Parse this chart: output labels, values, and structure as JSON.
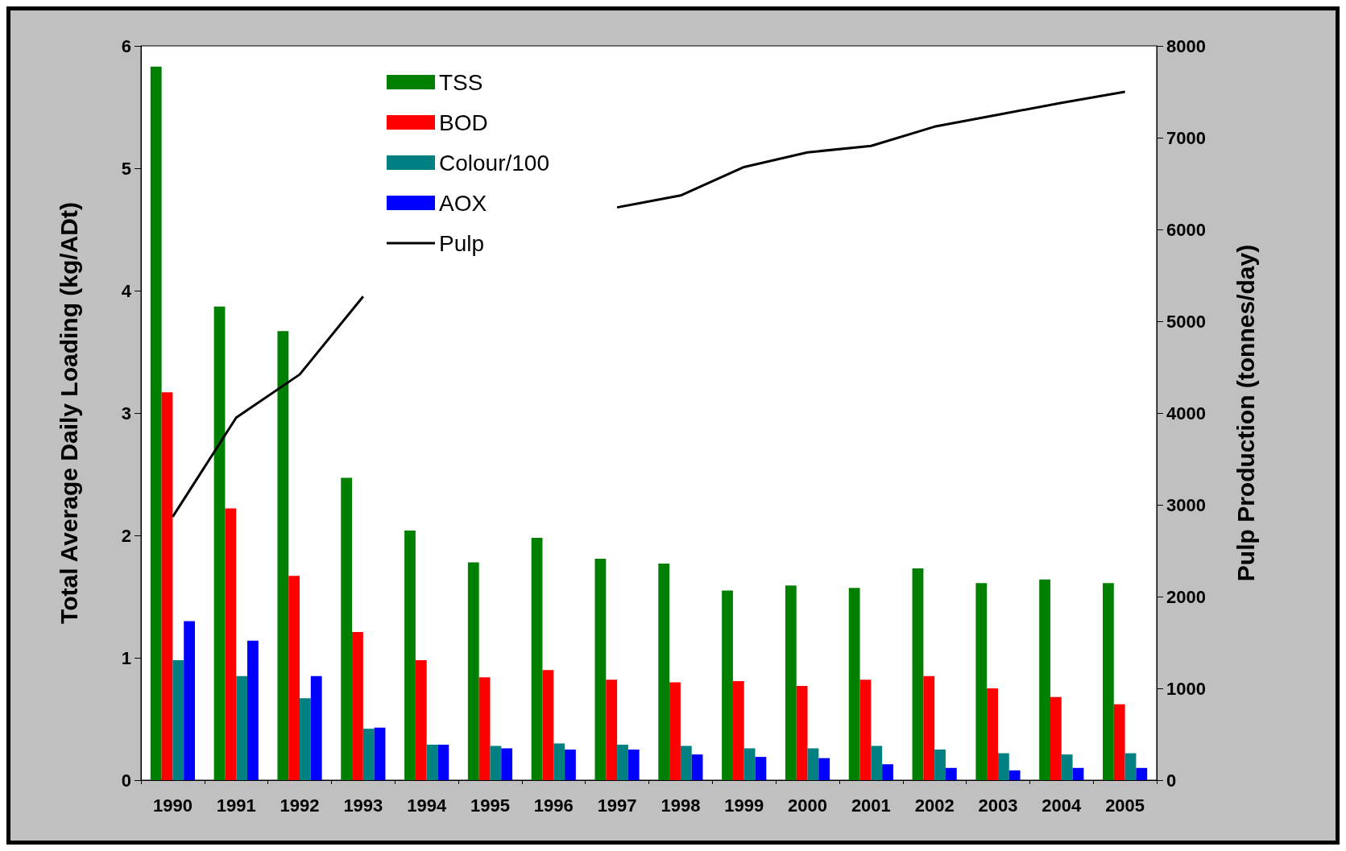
{
  "chart_data": {
    "type": "bar",
    "ylabel": "Total Average Daily Loading (kg/ADt)",
    "y2label": "Pulp Production (tonnes/day)",
    "categories": [
      "1990",
      "1991",
      "1992",
      "1993",
      "1994",
      "1995",
      "1996",
      "1997",
      "1998",
      "1999",
      "2000",
      "2001",
      "2002",
      "2003",
      "2004",
      "2005"
    ],
    "series": [
      {
        "name": "TSS",
        "color": "#008000",
        "values": [
          5.83,
          3.87,
          3.67,
          2.47,
          2.04,
          1.78,
          1.98,
          1.81,
          1.77,
          1.55,
          1.59,
          1.57,
          1.73,
          1.61,
          1.64,
          1.61
        ]
      },
      {
        "name": "BOD",
        "color": "#ff0000",
        "values": [
          3.17,
          2.22,
          1.67,
          1.21,
          0.98,
          0.84,
          0.9,
          0.82,
          0.8,
          0.81,
          0.77,
          0.82,
          0.85,
          0.75,
          0.68,
          0.62
        ]
      },
      {
        "name": "Colour/100",
        "color": "#008080",
        "values": [
          0.98,
          0.85,
          0.67,
          0.42,
          0.29,
          0.28,
          0.3,
          0.29,
          0.28,
          0.26,
          0.26,
          0.28,
          0.25,
          0.22,
          0.21,
          0.22
        ]
      },
      {
        "name": "AOX",
        "color": "#0000ff",
        "values": [
          1.3,
          1.14,
          0.85,
          0.43,
          0.29,
          0.26,
          0.25,
          0.25,
          0.21,
          0.19,
          0.18,
          0.13,
          0.1,
          0.08,
          0.1,
          0.1
        ]
      },
      {
        "name": "Pulp",
        "color": "#000000",
        "type": "line",
        "axis": "y2",
        "values": [
          2870,
          3950,
          4420,
          5270,
          null,
          null,
          null,
          6240,
          6370,
          6680,
          6840,
          6910,
          7120,
          7250,
          7380,
          7500
        ]
      }
    ],
    "ylim": [
      0,
      6
    ],
    "yticks": [
      0,
      1,
      2,
      3,
      4,
      5,
      6
    ],
    "y2lim": [
      0,
      8000
    ],
    "y2ticks": [
      0,
      1000,
      2000,
      3000,
      4000,
      5000,
      6000,
      7000,
      8000
    ],
    "legend": "top left",
    "marker": "none",
    "grid": false
  }
}
